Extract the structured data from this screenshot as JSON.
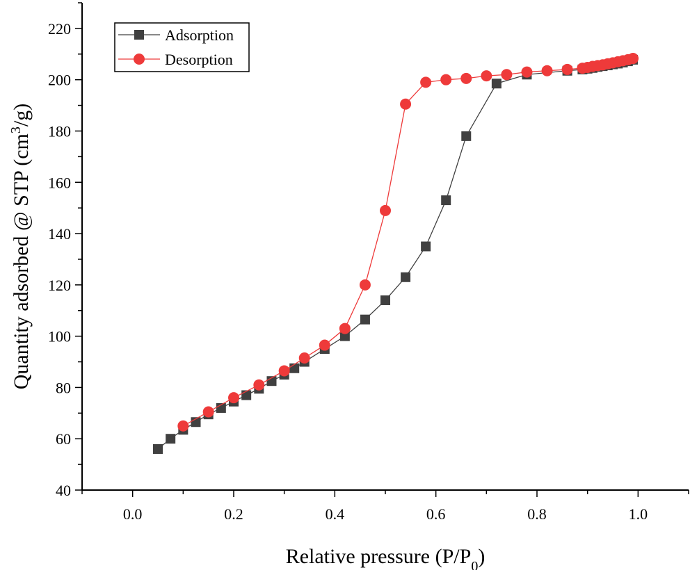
{
  "chart_data": {
    "type": "line",
    "xlabel": "Relative pressure (P/P",
    "xlabel_sub": "0",
    "xlabel_end": ")",
    "ylabel": "Quantity adsorbed @ STP (cm",
    "ylabel_sup": "3",
    "ylabel_end": "/g)",
    "xlim": [
      -0.1,
      1.1
    ],
    "ylim": [
      40,
      230
    ],
    "xticks": [
      0.0,
      0.2,
      0.4,
      0.6,
      0.8,
      1.0
    ],
    "xtick_labels": [
      "0.0",
      "0.2",
      "0.4",
      "0.6",
      "0.8",
      "1.0"
    ],
    "yticks": [
      40,
      60,
      80,
      100,
      120,
      140,
      160,
      180,
      200,
      220
    ],
    "ytick_labels": [
      "40",
      "60",
      "80",
      "100",
      "120",
      "140",
      "160",
      "180",
      "200",
      "220"
    ],
    "grid": false,
    "legend_position": "top-left",
    "series": [
      {
        "name": "Adsorption",
        "marker": "square",
        "color": "#404040",
        "x": [
          0.05,
          0.075,
          0.1,
          0.125,
          0.15,
          0.175,
          0.2,
          0.225,
          0.25,
          0.275,
          0.3,
          0.32,
          0.34,
          0.38,
          0.42,
          0.46,
          0.5,
          0.54,
          0.58,
          0.62,
          0.66,
          0.72,
          0.78,
          0.86,
          0.89,
          0.9,
          0.91,
          0.92,
          0.93,
          0.94,
          0.95,
          0.96,
          0.97,
          0.98,
          0.99
        ],
        "y": [
          56,
          60,
          63.5,
          66.5,
          69.5,
          72,
          74.5,
          77,
          79.5,
          82.5,
          85,
          87.5,
          90,
          95,
          100,
          106.5,
          114,
          123,
          135,
          153,
          178,
          198.5,
          202,
          203.5,
          204,
          204.3,
          204.6,
          205,
          205.3,
          205.6,
          206,
          206.3,
          206.7,
          207.2,
          207.8
        ]
      },
      {
        "name": "Desorption",
        "marker": "circle",
        "color": "#ee3a3a",
        "x": [
          0.1,
          0.15,
          0.2,
          0.25,
          0.3,
          0.34,
          0.38,
          0.42,
          0.46,
          0.5,
          0.54,
          0.58,
          0.62,
          0.66,
          0.7,
          0.74,
          0.78,
          0.82,
          0.86,
          0.89,
          0.9,
          0.91,
          0.92,
          0.93,
          0.94,
          0.95,
          0.96,
          0.97,
          0.98,
          0.99
        ],
        "y": [
          65,
          70.5,
          76,
          81,
          86.5,
          91.5,
          96.5,
          103,
          120,
          149,
          190.5,
          199,
          200,
          200.5,
          201.5,
          202,
          203,
          203.5,
          204,
          204.5,
          204.8,
          205.2,
          205.5,
          205.8,
          206.2,
          206.6,
          207,
          207.4,
          207.8,
          208.3
        ]
      }
    ]
  }
}
